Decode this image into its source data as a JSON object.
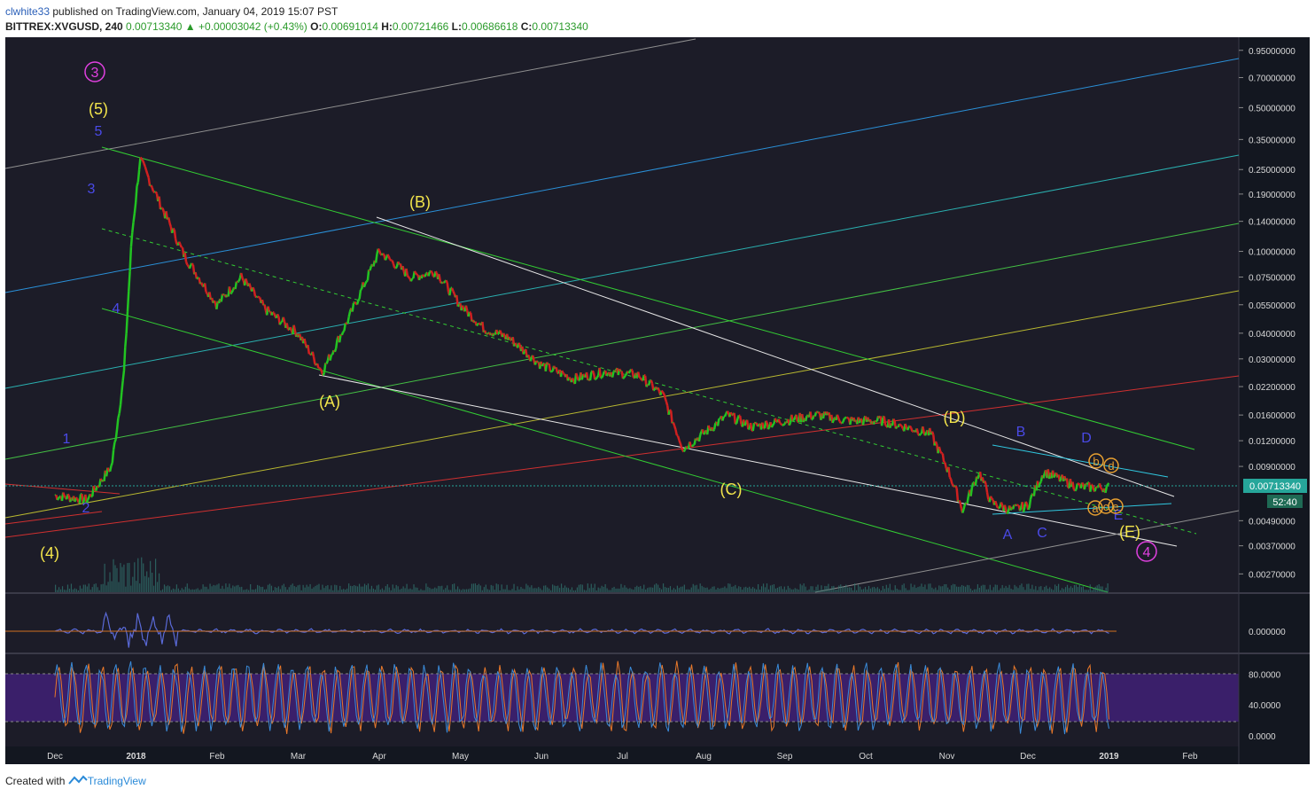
{
  "header": {
    "user": "clwhite33",
    "published": "published on TradingView.com, January 04, 2019 15:07 PST",
    "symbol": "BITTREX:XVGUSD, 240",
    "last": "0.00713340",
    "change": "+0.00003042 (+0.43%)",
    "o_label": "O:",
    "o_value": "0.00691014",
    "h_label": "H:",
    "h_value": "0.00721466",
    "l_label": "L:",
    "l_value": "0.00686618",
    "c_label": "C:",
    "c_value": "0.00713340"
  },
  "footer": {
    "created": "Created with",
    "brand": "TradingView"
  },
  "colors": {
    "panel_bg": "#1c1c28",
    "axis_bg": "#131720",
    "up": "#22c322",
    "down": "#d02020",
    "label_yellow": "#f2e44b",
    "label_blue": "#4a4ae8",
    "label_magenta": "#e040e0",
    "label_orange": "#e8a030",
    "price_tag": "#26a69a"
  },
  "chart_data": {
    "type": "line",
    "title": "BITTREX:XVGUSD, 240",
    "scale": "log",
    "ylim": [
      0.0022,
      1.1
    ],
    "x_ticks": [
      "Dec",
      "2018",
      "Feb",
      "Mar",
      "Apr",
      "May",
      "Jun",
      "Jul",
      "Aug",
      "Sep",
      "Oct",
      "Nov",
      "Dec",
      "2019",
      "Feb"
    ],
    "y_ticks": [
      "0.95000000",
      "0.70000000",
      "0.50000000",
      "0.35000000",
      "0.25000000",
      "0.19000000",
      "0.14000000",
      "0.10000000",
      "0.07500000",
      "0.05500000",
      "0.04000000",
      "0.03000000",
      "0.02200000",
      "0.01600000",
      "0.01200000",
      "0.00900000",
      "0.00490000",
      "0.00370000",
      "0.00270000"
    ],
    "y_tick_values": [
      0.95,
      0.7,
      0.5,
      0.35,
      0.25,
      0.19,
      0.14,
      0.1,
      0.075,
      0.055,
      0.04,
      0.03,
      0.022,
      0.016,
      0.012,
      0.009,
      0.0049,
      0.0037,
      0.0027
    ],
    "current_price_label": "0.00713340",
    "current_price": 0.0071334,
    "countdown_label": "52:40",
    "x_month_index": [
      0,
      1,
      2,
      3,
      4,
      5,
      6,
      7,
      8,
      9,
      10,
      11,
      12,
      13,
      14
    ],
    "series": [
      {
        "name": "XVGUSD close (approx)",
        "month_index": [
          0,
          0.4,
          0.7,
          0.85,
          0.95,
          1.05,
          1.3,
          1.6,
          2.0,
          2.3,
          2.6,
          3.0,
          3.3,
          3.6,
          4.0,
          4.4,
          4.7,
          5.0,
          5.3,
          5.6,
          6.0,
          6.4,
          6.8,
          7.2,
          7.5,
          7.75,
          8.0,
          8.3,
          8.6,
          9.0,
          9.4,
          9.8,
          10.2,
          10.5,
          10.8,
          11.0,
          11.2,
          11.4,
          11.55,
          11.8,
          12.0,
          12.2,
          12.4,
          12.6,
          12.8,
          13.0
        ],
        "values": [
          0.0065,
          0.0062,
          0.009,
          0.025,
          0.12,
          0.28,
          0.17,
          0.095,
          0.055,
          0.075,
          0.052,
          0.04,
          0.026,
          0.045,
          0.1,
          0.075,
          0.08,
          0.055,
          0.042,
          0.038,
          0.028,
          0.024,
          0.026,
          0.025,
          0.02,
          0.011,
          0.013,
          0.016,
          0.014,
          0.015,
          0.016,
          0.015,
          0.015,
          0.014,
          0.013,
          0.009,
          0.0055,
          0.0085,
          0.006,
          0.0055,
          0.0058,
          0.0085,
          0.0078,
          0.0072,
          0.0071,
          0.0071
        ]
      }
    ],
    "wave_labels": [
      {
        "text": "3",
        "style": "circled-magenta"
      },
      {
        "text": "(5)",
        "style": "yellow"
      },
      {
        "text": "5",
        "style": "blue"
      },
      {
        "text": "3",
        "style": "blue"
      },
      {
        "text": "4",
        "style": "blue"
      },
      {
        "text": "1",
        "style": "blue"
      },
      {
        "text": "2",
        "style": "blue"
      },
      {
        "text": "(4)",
        "style": "yellow"
      },
      {
        "text": "(B)",
        "style": "yellow"
      },
      {
        "text": "(A)",
        "style": "yellow"
      },
      {
        "text": "(C)",
        "style": "yellow"
      },
      {
        "text": "(D)",
        "style": "yellow"
      },
      {
        "text": "(E)",
        "style": "yellow"
      },
      {
        "text": "4",
        "style": "circled-magenta"
      },
      {
        "text": "A",
        "style": "blue"
      },
      {
        "text": "B",
        "style": "blue"
      },
      {
        "text": "C",
        "style": "blue"
      },
      {
        "text": "D",
        "style": "blue"
      },
      {
        "text": "E",
        "style": "blue"
      },
      {
        "text": "b",
        "style": "circled-orange"
      },
      {
        "text": "d",
        "style": "circled-orange"
      },
      {
        "text": "a",
        "style": "circled-orange"
      },
      {
        "text": "c",
        "style": "circled-orange"
      },
      {
        "text": "e",
        "style": "circled-orange"
      }
    ],
    "indicator1": {
      "ticks": [
        "0.000000"
      ],
      "tick_values": [
        0
      ]
    },
    "indicator2": {
      "ticks": [
        "80.0000",
        "40.0000",
        "0.0000"
      ],
      "tick_values": [
        80,
        40,
        0
      ],
      "band": [
        20,
        80
      ]
    }
  }
}
